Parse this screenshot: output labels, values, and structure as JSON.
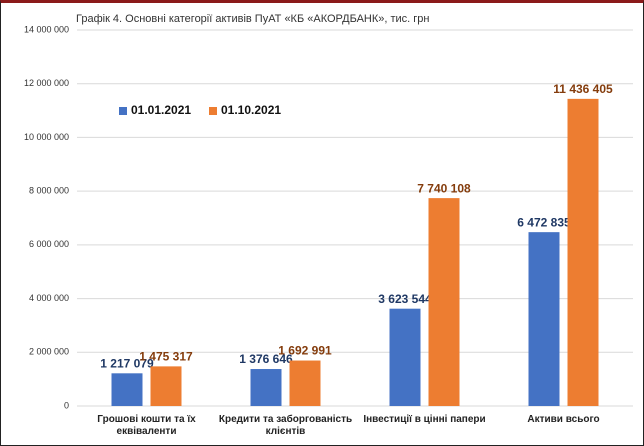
{
  "chart_data": {
    "type": "bar",
    "title": "Графік 4. Основні категорії активів ПуАТ «КБ «АКОРДБАНК», тис. грн",
    "categories": [
      "Грошові кошти та їх еквіваленти",
      "Кредити та заборгованість клієнтів",
      "Інвестиції в цінні папери",
      "Активи всього"
    ],
    "series": [
      {
        "name": "01.01.2021",
        "color": "#4472c4",
        "values": [
          1217079,
          1376646,
          3623544,
          6472835
        ],
        "value_labels": [
          "1 217 079",
          "1 376 646",
          "3 623 544",
          "6 472 835"
        ]
      },
      {
        "name": "01.10.2021",
        "color": "#ed7d31",
        "values": [
          1475317,
          1692991,
          7740108,
          11436405
        ],
        "value_labels": [
          "1 475 317",
          "1 692 991",
          "7 740 108",
          "11 436 405"
        ]
      }
    ],
    "ylim": [
      0,
      14000000
    ],
    "yticks": [
      {
        "value": 0,
        "label": "0"
      },
      {
        "value": 2000000,
        "label": "2 000 000"
      },
      {
        "value": 4000000,
        "label": "4 000 000"
      },
      {
        "value": 6000000,
        "label": "6 000 000"
      },
      {
        "value": 8000000,
        "label": "8 000 000"
      },
      {
        "value": 10000000,
        "label": "10 000 000"
      },
      {
        "value": 12000000,
        "label": "12 000 000"
      },
      {
        "value": 14000000,
        "label": "14 000 000"
      }
    ],
    "grid": true,
    "legend": "top-left"
  }
}
